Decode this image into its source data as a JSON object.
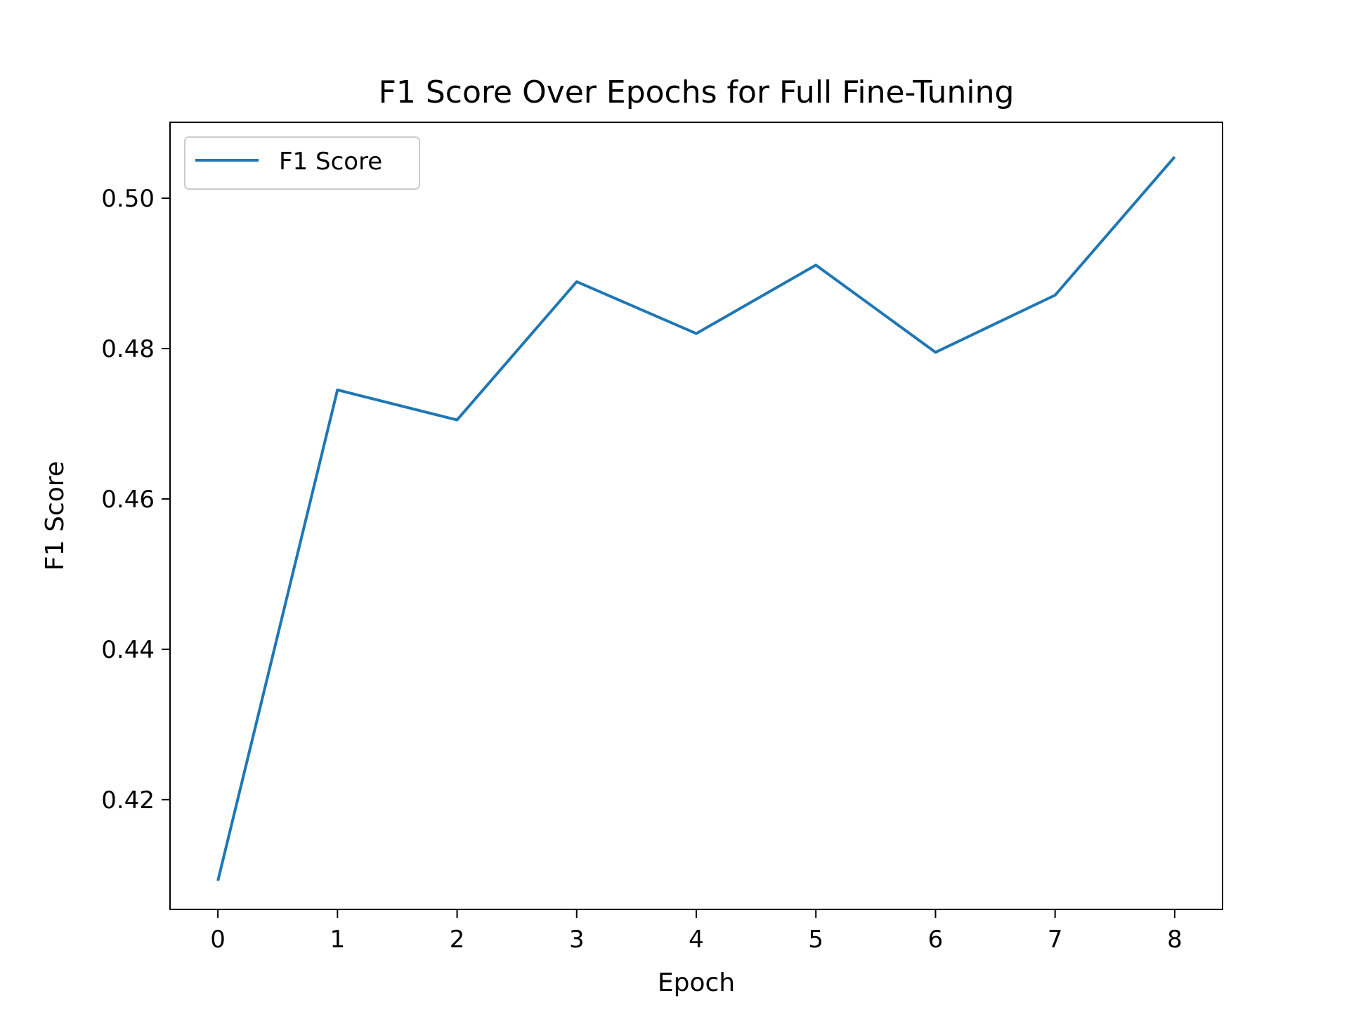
{
  "chart_data": {
    "type": "line",
    "title": "F1 Score Over Epochs for Full Fine-Tuning",
    "xlabel": "Epoch",
    "ylabel": "F1 Score",
    "x": [
      0,
      1,
      2,
      3,
      4,
      5,
      6,
      7,
      8
    ],
    "series": [
      {
        "name": "F1 Score",
        "color": "#1f77b4",
        "values": [
          0.4092,
          0.4745,
          0.4705,
          0.4889,
          0.482,
          0.4911,
          0.4795,
          0.4871,
          0.5055
        ]
      }
    ],
    "xlim": [
      -0.4,
      8.4
    ],
    "ylim": [
      0.4054,
      0.5101
    ],
    "x_ticks": [
      0,
      1,
      2,
      3,
      4,
      5,
      6,
      7,
      8
    ],
    "y_ticks": [
      0.42,
      0.44,
      0.46,
      0.48,
      0.5
    ],
    "x_tick_labels": [
      "0",
      "1",
      "2",
      "3",
      "4",
      "5",
      "6",
      "7",
      "8"
    ],
    "y_tick_labels": [
      "0.42",
      "0.44",
      "0.46",
      "0.48",
      "0.50"
    ],
    "grid": false,
    "legend_position": "top-left"
  }
}
